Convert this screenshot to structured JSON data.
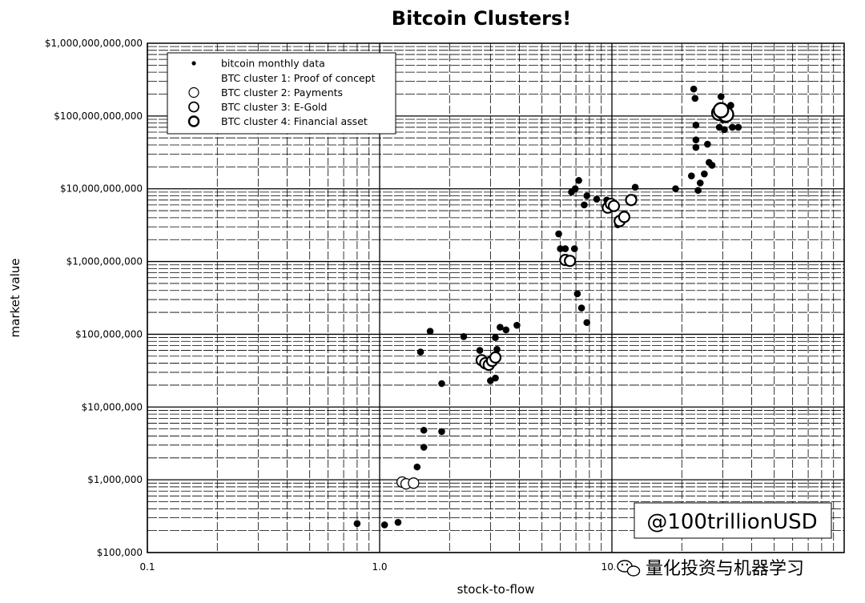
{
  "chart_data": {
    "type": "scatter",
    "title": "Bitcoin Clusters!",
    "xlabel": "stock-to-flow",
    "ylabel": "market value",
    "xscale": "log",
    "yscale": "log",
    "xlim": [
      0.1,
      100.0
    ],
    "ylim": [
      100000,
      1000000000000
    ],
    "grid": true,
    "legend_position": "top-left",
    "x_tick_labels": [
      "0.1",
      "1.0",
      "10.0",
      "100.0"
    ],
    "y_tick_labels": [
      "$100,000",
      "$1,000,000",
      "$10,000,000",
      "$100,000,000",
      "$1,000,000,000",
      "$10,000,000,000",
      "$100,000,000,000",
      "$1,000,000,000,000"
    ],
    "series": [
      {
        "name": "bitcoin monthly data",
        "marker": "filled-dot",
        "points": [
          [
            0.8,
            250000
          ],
          [
            1.05,
            240000
          ],
          [
            1.2,
            260000
          ],
          [
            1.45,
            1500000
          ],
          [
            1.55,
            2800000
          ],
          [
            1.55,
            4800000
          ],
          [
            1.85,
            4600000
          ],
          [
            1.85,
            21000000
          ],
          [
            1.5,
            57000000
          ],
          [
            1.65,
            110000000
          ],
          [
            2.3,
            93000000
          ],
          [
            2.7,
            60000000
          ],
          [
            2.8,
            40000000
          ],
          [
            3.0,
            23000000
          ],
          [
            3.15,
            25000000
          ],
          [
            3.15,
            90000000
          ],
          [
            3.2,
            62000000
          ],
          [
            3.3,
            125000000
          ],
          [
            3.5,
            115000000
          ],
          [
            3.9,
            133000000
          ],
          [
            5.9,
            2400000000
          ],
          [
            6.0,
            1500000000
          ],
          [
            6.3,
            1500000000
          ],
          [
            6.3,
            1100000000
          ],
          [
            6.6,
            1100000000
          ],
          [
            6.9,
            1500000000
          ],
          [
            7.1,
            360000000
          ],
          [
            7.4,
            230000000
          ],
          [
            7.8,
            145000000
          ],
          [
            6.7,
            9000000000
          ],
          [
            6.95,
            10000000000
          ],
          [
            7.2,
            13000000000
          ],
          [
            7.6,
            6000000000
          ],
          [
            7.8,
            8000000000
          ],
          [
            8.6,
            7200000000
          ],
          [
            9.5,
            7000000000
          ],
          [
            10.6,
            3200000000
          ],
          [
            11.0,
            4000000000
          ],
          [
            12.0,
            6500000000
          ],
          [
            12.4,
            7500000000
          ],
          [
            12.6,
            10500000000
          ],
          [
            18.8,
            10000000000
          ],
          [
            22.0,
            15000000000
          ],
          [
            22.5,
            235000000000
          ],
          [
            22.8,
            175000000000
          ],
          [
            23.0,
            75000000000
          ],
          [
            23.0,
            47000000000
          ],
          [
            23.0,
            37000000000
          ],
          [
            23.5,
            9500000000
          ],
          [
            24.0,
            12000000000
          ],
          [
            25.0,
            16000000000
          ],
          [
            25.8,
            41000000000
          ],
          [
            26.2,
            23000000000
          ],
          [
            27.0,
            21000000000
          ],
          [
            28.0,
            110000000000
          ],
          [
            28.5,
            120000000000
          ],
          [
            29.0,
            70000000000
          ],
          [
            29.5,
            185000000000
          ],
          [
            30.0,
            90000000000
          ],
          [
            30.5,
            65000000000
          ],
          [
            31.5,
            100000000000
          ],
          [
            32.5,
            140000000000
          ],
          [
            33.0,
            70000000000
          ],
          [
            35.0,
            70000000000
          ]
        ]
      },
      {
        "name": "BTC cluster 1: Proof of concept",
        "marker": "none",
        "points": []
      },
      {
        "name": "BTC cluster 2: Payments",
        "marker": "hollow-circle",
        "points": [
          [
            1.25,
            930000
          ],
          [
            1.3,
            880000
          ],
          [
            1.4,
            900000
          ]
        ]
      },
      {
        "name": "BTC cluster 3: E-Gold",
        "marker": "hollow-circle",
        "points": [
          [
            2.75,
            44000000
          ],
          [
            2.85,
            40000000
          ],
          [
            2.95,
            38000000
          ],
          [
            3.05,
            43000000
          ],
          [
            3.15,
            48000000
          ],
          [
            6.3,
            1050000000
          ],
          [
            6.6,
            1020000000
          ],
          [
            9.6,
            5500000000
          ],
          [
            9.9,
            6200000000
          ],
          [
            10.2,
            5800000000
          ],
          [
            10.8,
            3600000000
          ],
          [
            11.3,
            4100000000
          ],
          [
            12.1,
            7000000000
          ]
        ]
      },
      {
        "name": "BTC cluster 4: Financial asset",
        "marker": "hollow-circle",
        "points": [
          [
            29.0,
            110000000000
          ],
          [
            30.0,
            115000000000
          ],
          [
            31.0,
            105000000000
          ],
          [
            29.5,
            120000000000
          ]
        ]
      }
    ]
  },
  "watermark": "@100trillionUSD",
  "footer_text": "量化投资与机器学习",
  "footer_icon": "wechat-icon"
}
